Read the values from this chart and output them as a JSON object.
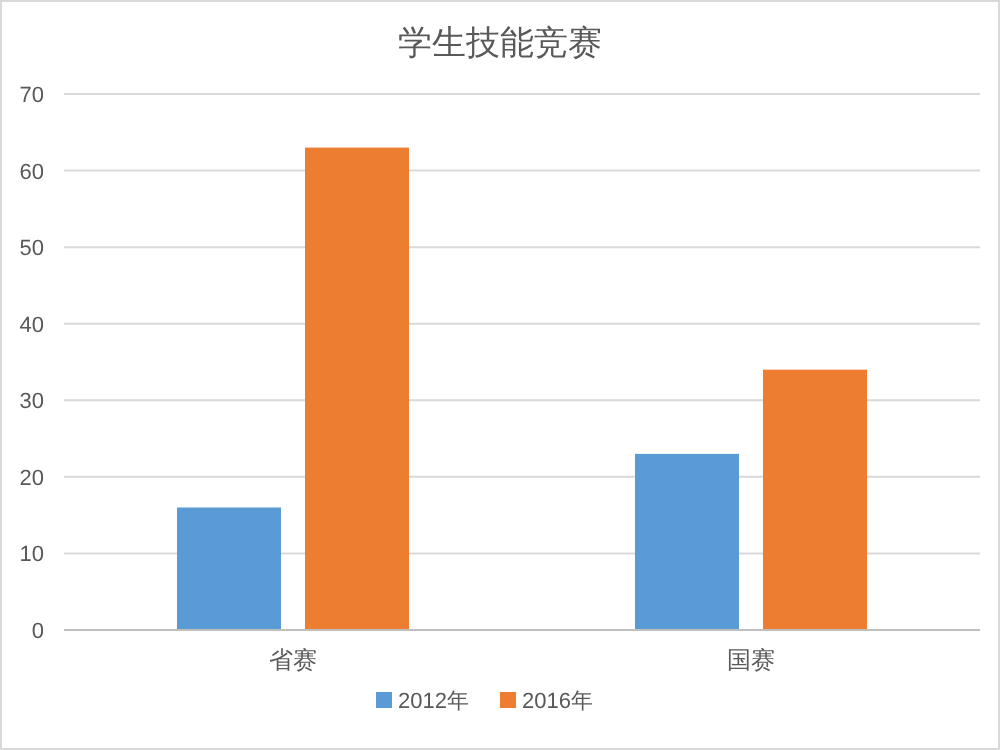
{
  "chart_data": {
    "type": "bar",
    "title": "学生技能竞赛",
    "categories": [
      "省赛",
      "国赛"
    ],
    "series": [
      {
        "name": "2012年",
        "color": "#5b9bd5",
        "values": [
          16,
          23
        ]
      },
      {
        "name": "2016年",
        "color": "#ed7d31",
        "values": [
          63,
          34
        ]
      }
    ],
    "ylim": [
      0,
      70
    ],
    "yticks": [
      0,
      10,
      20,
      30,
      40,
      50,
      60,
      70
    ],
    "grid": "y",
    "legend": "bottom"
  }
}
